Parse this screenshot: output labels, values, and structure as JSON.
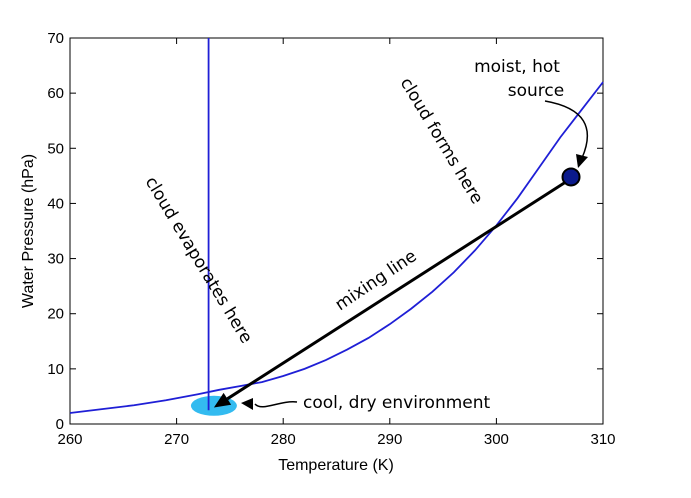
{
  "chart_data": {
    "type": "line",
    "xlabel": "Temperature (K)",
    "ylabel": "Water Pressure (hPa)",
    "xlim": [
      260,
      310
    ],
    "ylim": [
      0,
      70
    ],
    "xticks": [
      260,
      270,
      280,
      290,
      300,
      310
    ],
    "yticks": [
      0,
      10,
      20,
      30,
      40,
      50,
      60,
      70
    ],
    "grid": false,
    "legend": "none",
    "series": [
      {
        "kind": "saturation-curve",
        "color": "#1f1fd6",
        "x": [
          260,
          263,
          266,
          269,
          272,
          274,
          276,
          278,
          280,
          282,
          284,
          286,
          288,
          290,
          292,
          294,
          296,
          298,
          300,
          302,
          304,
          306,
          308,
          310
        ],
        "y": [
          2.0,
          2.7,
          3.4,
          4.3,
          5.4,
          6.2,
          6.9,
          7.6,
          8.7,
          10.0,
          11.6,
          13.5,
          15.6,
          18.1,
          20.9,
          24.0,
          27.5,
          31.5,
          36.0,
          41.0,
          46.5,
          52.0,
          57.0,
          62.0
        ]
      },
      {
        "kind": "vertical-line",
        "color": "#1f1fd6",
        "x": [
          273,
          273
        ],
        "y": [
          2.5,
          70
        ]
      },
      {
        "kind": "mixing-line",
        "color": "#000000",
        "x": [
          307,
          273.5
        ],
        "y": [
          44.5,
          3.0
        ]
      }
    ],
    "points": [
      {
        "role": "source",
        "x": 307,
        "y": 44.8,
        "color": "#0b1a8c"
      },
      {
        "role": "environment",
        "x": 273.5,
        "y": 3.3,
        "color": "#33bbf0"
      }
    ]
  },
  "annotations": {
    "moist_hot_line1": "moist, hot",
    "moist_hot_line2": "source",
    "cloud_forms": "cloud forms here",
    "cloud_evaporates": "cloud evaporates here",
    "mixing_line": "mixing line",
    "cool_dry": "cool, dry environment"
  }
}
